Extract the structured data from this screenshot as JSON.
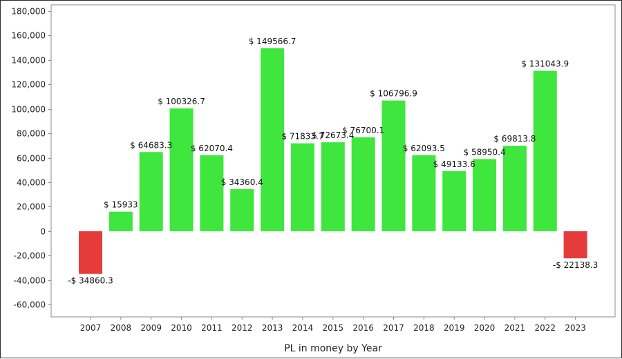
{
  "chart_data": {
    "type": "bar",
    "xlabel": "PL in money by Year",
    "ylabel": "",
    "ylim": [
      -70000,
      185000
    ],
    "yticks": [
      180000,
      160000,
      140000,
      120000,
      100000,
      80000,
      60000,
      40000,
      20000,
      0,
      -20000,
      -40000,
      -60000
    ],
    "ytick_labels": [
      "180,000",
      "160,000",
      "140,000",
      "120,000",
      "100,000",
      "80,000",
      "60,000",
      "40,000",
      "20,000",
      "0",
      "-20,000",
      "-40,000",
      "-60,000"
    ],
    "grid": true,
    "categories": [
      "2007",
      "2008",
      "2009",
      "2010",
      "2011",
      "2012",
      "2013",
      "2014",
      "2015",
      "2016",
      "2017",
      "2018",
      "2019",
      "2020",
      "2021",
      "2022",
      "2023"
    ],
    "values": [
      -34860.3,
      15933,
      64683.3,
      100326.7,
      62070.4,
      34360.4,
      149566.7,
      71833.7,
      72673.4,
      76700.1,
      106796.9,
      62093.5,
      49133.6,
      58950.4,
      69813.8,
      131043.9,
      -22138.3
    ],
    "data_labels": [
      "-$ 34860.3",
      "$ 15933",
      "$ 64683.3",
      "$ 100326.7",
      "$ 62070.4",
      "$ 34360.4",
      "$ 149566.7",
      "$ 71833.7",
      "$ 72673.4",
      "$ 76700.1",
      "$ 106796.9",
      "$ 62093.5",
      "$ 49133.6",
      "$ 58950.4",
      "$ 69813.8",
      "$ 131043.9",
      "-$ 22138.3"
    ],
    "colors": {
      "positive": "#3ee63e",
      "negative": "#e63b3b",
      "grid": "#d8d8d8",
      "axis": "#888888"
    }
  }
}
